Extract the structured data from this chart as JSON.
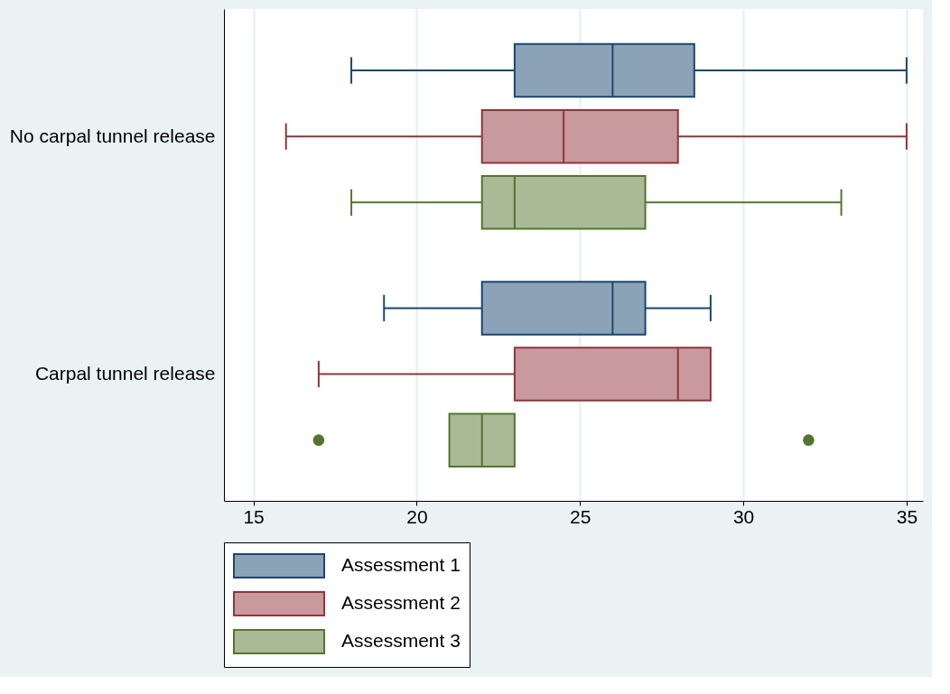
{
  "chart_data": {
    "type": "box",
    "orientation": "horizontal",
    "categories": [
      "No carpal tunnel release",
      "Carpal tunnel release"
    ],
    "xlim": [
      14.1,
      35.5
    ],
    "xticks": [
      15,
      20,
      25,
      30,
      35
    ],
    "grid": "x",
    "legend": "bottom",
    "series": [
      {
        "name": "Assessment 1",
        "color": "#1a476f",
        "boxes": [
          {
            "low": 18,
            "q1": 23,
            "median": 26,
            "q3": 28.5,
            "high": 35
          },
          {
            "low": 19,
            "q1": 22,
            "median": 26,
            "q3": 27,
            "high": 29
          }
        ]
      },
      {
        "name": "Assessment 2",
        "color": "#90353b",
        "boxes": [
          {
            "low": 16,
            "q1": 22,
            "median": 24.5,
            "q3": 28,
            "high": 35
          },
          {
            "low": 17,
            "q1": 23,
            "median": 28,
            "q3": 29,
            "high": 29
          }
        ]
      },
      {
        "name": "Assessment 3",
        "color": "#55752f",
        "boxes": [
          {
            "low": 18,
            "q1": 22,
            "median": 23,
            "q3": 27,
            "high": 33
          },
          {
            "low": 21,
            "q1": 21,
            "median": 22,
            "q3": 23,
            "high": 23,
            "outliers": [
              17,
              32
            ]
          }
        ]
      }
    ]
  }
}
